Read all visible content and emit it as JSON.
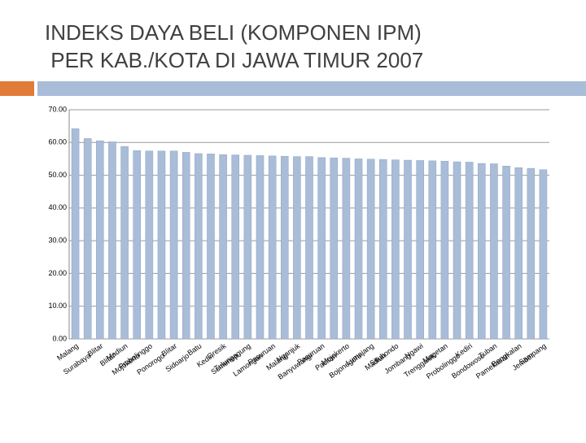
{
  "chart_data": {
    "type": "bar",
    "title": [
      "INDEKS DAYA BELI (KOMPONEN IPM)",
      " PER KAB./KOTA DI JAWA TIMUR 2007"
    ],
    "categories": [
      "Malang",
      "Surabaya",
      "Blitar",
      "Blitar",
      "Madiun",
      "Mojokerto",
      "Probolinggo",
      "Ponorogo",
      "Blitar",
      "Sidoarjo",
      "Batu",
      "Kediri",
      "Gresik",
      "Sumenep",
      "Tulungagung",
      "Lamongan",
      "Pasuruan",
      "Malang",
      "Nganjuk",
      "Banyuwangi",
      "Pasuruan",
      "Pacitan",
      "Mojokerto",
      "Bojonegoro",
      "Lumajang",
      "Madiun",
      "Situbondo",
      "Jombang",
      "Ngawi",
      "Trenggalek",
      "Magetan",
      "Probolinggo",
      "Kediri",
      "Bondowoso",
      "Tuban",
      "Pamekasan",
      "Bangkalan",
      "Jember",
      "Sampang"
    ],
    "values": [
      64.2,
      61.2,
      60.5,
      60.2,
      58.8,
      57.5,
      57.4,
      57.4,
      57.4,
      57.0,
      56.6,
      56.5,
      56.3,
      56.2,
      56.1,
      56.0,
      55.9,
      55.8,
      55.7,
      55.7,
      55.4,
      55.3,
      55.2,
      55.0,
      54.9,
      54.8,
      54.7,
      54.6,
      54.5,
      54.4,
      54.3,
      54.1,
      54.0,
      53.6,
      53.5,
      52.8,
      52.3,
      52.1,
      51.7
    ],
    "color": "#a9bcd8",
    "ylim": [
      0,
      70
    ],
    "yticks": [
      {
        "value": 0,
        "label": "0.00"
      },
      {
        "value": 10,
        "label": "10.00"
      },
      {
        "value": 20,
        "label": "20.00"
      },
      {
        "value": 30,
        "label": "30.00"
      },
      {
        "value": 40,
        "label": "40.00"
      },
      {
        "value": 50,
        "label": "50.00"
      },
      {
        "value": 60,
        "label": "60.00"
      },
      {
        "value": 70,
        "label": "70.00"
      }
    ],
    "grid": true
  }
}
